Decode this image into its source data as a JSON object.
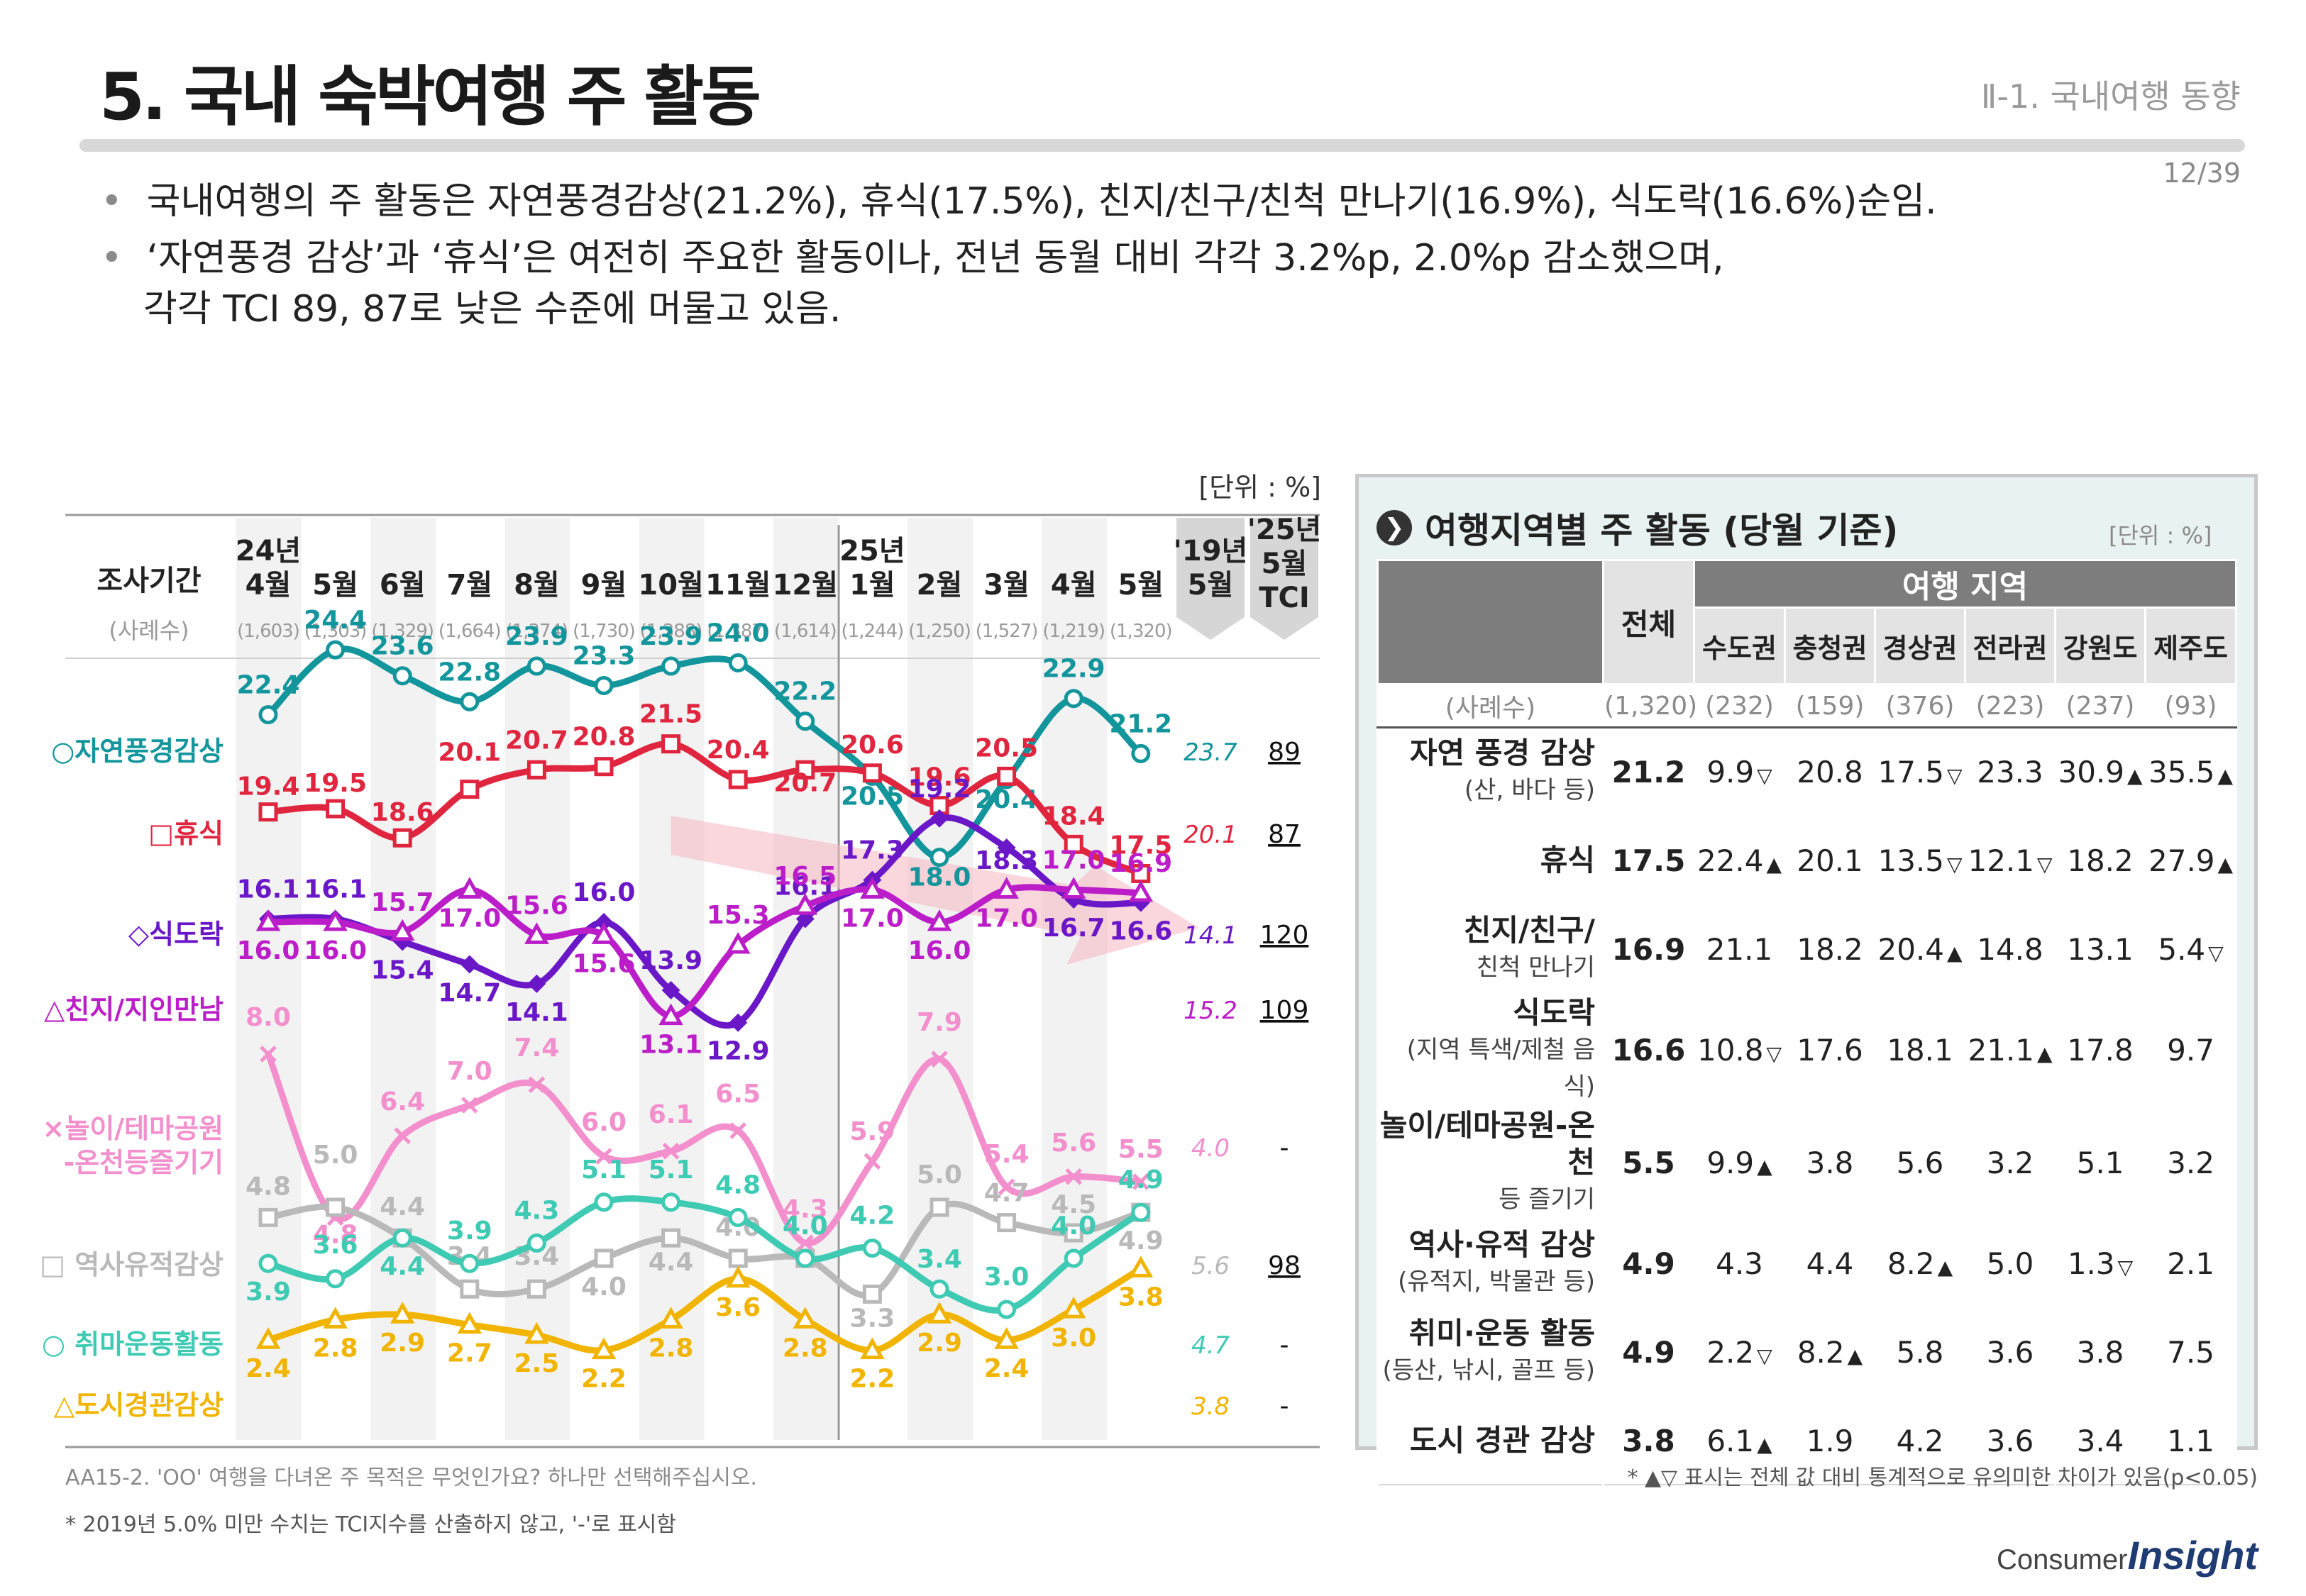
{
  "header": {
    "title": "5. 국내 숙박여행 주 활동",
    "section": "Ⅱ-1. 국내여행 동향",
    "page": "12/39"
  },
  "bullets": [
    "국내여행의 주 활동은 자연풍경감상(21.2%), 휴식(17.5%), 친지/친구/친척 만나기(16.9%), 식도락(16.6%)순임.",
    "‘자연풍경 감상’과 ‘휴식’은 여전히 주요한 활동이나, 전년 동월 대비 각각 3.2%p, 2.0%p 감소했으며,",
    "각각 TCI 89, 87로 낮은 수준에 머물고 있음."
  ],
  "chart_data": {
    "type": "line",
    "unit_label": "[단위 : %]",
    "period_header": "조사기간",
    "sample_header": "(사례수)",
    "categories": [
      "24년 4월",
      "5월",
      "6월",
      "7월",
      "8월",
      "9월",
      "10월",
      "11월",
      "12월",
      "25년 1월",
      "2월",
      "3월",
      "4월",
      "5월"
    ],
    "sample_sizes": [
      "(1,603)",
      "(1,303)",
      "(1,329)",
      "(1,664)",
      "(1,374)",
      "(1,730)",
      "(1,388)",
      "(1,387)",
      "(1,614)",
      "(1,244)",
      "(1,250)",
      "(1,527)",
      "(1,219)",
      "(1,320)"
    ],
    "extra_columns": [
      "'19년 5월",
      "'25년 5월 TCI"
    ],
    "series": [
      {
        "name": "○자연풍경감상",
        "color": "#13959c",
        "values": [
          22.4,
          24.4,
          23.6,
          22.8,
          23.9,
          23.3,
          23.9,
          24.0,
          22.2,
          20.5,
          18.0,
          20.4,
          22.9,
          21.2
        ],
        "y19": "23.7",
        "tci": "89"
      },
      {
        "name": "□휴식",
        "color": "#e0263f",
        "values": [
          19.4,
          19.5,
          18.6,
          20.1,
          20.7,
          20.8,
          21.5,
          20.4,
          20.7,
          20.6,
          19.6,
          20.5,
          18.4,
          17.5
        ],
        "y19": "20.1",
        "tci": "87"
      },
      {
        "name": "◇식도락",
        "color": "#6a17c8",
        "values": [
          16.1,
          16.1,
          15.4,
          14.7,
          14.1,
          16.0,
          13.9,
          12.9,
          16.1,
          17.3,
          19.2,
          18.3,
          16.7,
          16.6
        ],
        "y19": "14.1",
        "tci": "120"
      },
      {
        "name": "△친지/지인만남",
        "color": "#bb1ec8",
        "values": [
          16.0,
          16.0,
          15.7,
          17.0,
          15.6,
          15.6,
          13.1,
          15.3,
          16.5,
          17.0,
          16.0,
          17.0,
          17.0,
          16.9
        ],
        "y19": "15.2",
        "tci": "109"
      },
      {
        "name": "×놀이/테마공원 -온천등즐기기",
        "color": "#f38fcc",
        "values": [
          8.0,
          4.8,
          6.4,
          7.0,
          7.4,
          6.0,
          6.1,
          6.5,
          4.3,
          5.9,
          7.9,
          5.4,
          5.6,
          5.5
        ],
        "y19": "4.0",
        "tci": "-"
      },
      {
        "name": "□ 역사유적감상",
        "color": "#b9b9b9",
        "values": [
          4.8,
          5.0,
          4.4,
          3.4,
          3.4,
          4.0,
          4.4,
          4.0,
          4.0,
          3.3,
          5.0,
          4.7,
          4.5,
          4.9
        ],
        "y19": "5.6",
        "tci": "98"
      },
      {
        "name": "○ 취마운동활동",
        "color": "#3ecab3",
        "values": [
          3.9,
          3.6,
          4.4,
          3.9,
          4.3,
          5.1,
          5.1,
          4.8,
          4.0,
          4.2,
          3.4,
          3.0,
          4.0,
          4.9
        ],
        "y19": "4.7",
        "tci": "-"
      },
      {
        "name": "△도시경관감상",
        "color": "#f1b400",
        "values": [
          2.4,
          2.8,
          2.9,
          2.7,
          2.5,
          2.2,
          2.8,
          3.6,
          2.8,
          2.2,
          2.9,
          2.4,
          3.0,
          3.8
        ],
        "y19": "3.8",
        "tci": "-"
      }
    ],
    "title": "",
    "xlabel": "",
    "ylabel": ""
  },
  "region_table": {
    "title": "여행지역별 주 활동 (당월 기준)",
    "unit": "[단위 : %]",
    "total_header": "전체",
    "region_header": "여행 지역",
    "regions": [
      "수도권",
      "충청권",
      "경상권",
      "전라권",
      "강원도",
      "제주도"
    ],
    "sample_label": "(사례수)",
    "samples": [
      "(1,320)",
      "(232)",
      "(159)",
      "(376)",
      "(223)",
      "(237)",
      "(93)"
    ],
    "rows": [
      {
        "label": "자연 풍경 감상",
        "sub": "(산, 바다 등)",
        "total": "21.2",
        "cells": [
          {
            "v": "9.9",
            "m": "▽"
          },
          {
            "v": "20.8",
            "m": ""
          },
          {
            "v": "17.5",
            "m": "▽"
          },
          {
            "v": "23.3",
            "m": ""
          },
          {
            "v": "30.9",
            "m": "▲"
          },
          {
            "v": "35.5",
            "m": "▲"
          }
        ]
      },
      {
        "label": "휴식",
        "sub": "",
        "total": "17.5",
        "cells": [
          {
            "v": "22.4",
            "m": "▲"
          },
          {
            "v": "20.1",
            "m": ""
          },
          {
            "v": "13.5",
            "m": "▽"
          },
          {
            "v": "12.1",
            "m": "▽"
          },
          {
            "v": "18.2",
            "m": ""
          },
          {
            "v": "27.9",
            "m": "▲"
          }
        ]
      },
      {
        "label": "친지/친구/",
        "sub": "친척 만나기",
        "total": "16.9",
        "cells": [
          {
            "v": "21.1",
            "m": ""
          },
          {
            "v": "18.2",
            "m": ""
          },
          {
            "v": "20.4",
            "m": "▲"
          },
          {
            "v": "14.8",
            "m": ""
          },
          {
            "v": "13.1",
            "m": ""
          },
          {
            "v": "5.4",
            "m": "▽"
          }
        ]
      },
      {
        "label": "식도락",
        "sub": "(지역 특색/제철 음식)",
        "total": "16.6",
        "cells": [
          {
            "v": "10.8",
            "m": "▽"
          },
          {
            "v": "17.6",
            "m": ""
          },
          {
            "v": "18.1",
            "m": ""
          },
          {
            "v": "21.1",
            "m": "▲"
          },
          {
            "v": "17.8",
            "m": ""
          },
          {
            "v": "9.7",
            "m": ""
          }
        ]
      },
      {
        "label": "놀이/테마공원-온천",
        "sub": "등 즐기기",
        "total": "5.5",
        "cells": [
          {
            "v": "9.9",
            "m": "▲"
          },
          {
            "v": "3.8",
            "m": ""
          },
          {
            "v": "5.6",
            "m": ""
          },
          {
            "v": "3.2",
            "m": ""
          },
          {
            "v": "5.1",
            "m": ""
          },
          {
            "v": "3.2",
            "m": ""
          }
        ]
      },
      {
        "label": "역사·유적 감상",
        "sub": "(유적지, 박물관 등)",
        "total": "4.9",
        "cells": [
          {
            "v": "4.3",
            "m": ""
          },
          {
            "v": "4.4",
            "m": ""
          },
          {
            "v": "8.2",
            "m": "▲"
          },
          {
            "v": "5.0",
            "m": ""
          },
          {
            "v": "1.3",
            "m": "▽"
          },
          {
            "v": "2.1",
            "m": ""
          }
        ]
      },
      {
        "label": "취미·운동 활동",
        "sub": "(등산, 낚시, 골프 등)",
        "total": "4.9",
        "cells": [
          {
            "v": "2.2",
            "m": "▽"
          },
          {
            "v": "8.2",
            "m": "▲"
          },
          {
            "v": "5.8",
            "m": ""
          },
          {
            "v": "3.6",
            "m": ""
          },
          {
            "v": "3.8",
            "m": ""
          },
          {
            "v": "7.5",
            "m": ""
          }
        ]
      },
      {
        "label": "도시 경관 감상",
        "sub": "",
        "total": "3.8",
        "cells": [
          {
            "v": "6.1",
            "m": "▲"
          },
          {
            "v": "1.9",
            "m": ""
          },
          {
            "v": "4.2",
            "m": ""
          },
          {
            "v": "3.6",
            "m": ""
          },
          {
            "v": "3.4",
            "m": ""
          },
          {
            "v": "1.1",
            "m": ""
          }
        ]
      }
    ]
  },
  "footnotes": {
    "question": "AA15-2. 'OO' 여행을 다녀온 주 목적은 무엇인가요? 하나만 선택해주십시오.",
    "tci_note": "* 2019년 5.0% 미만 수치는 TCI지수를 산출하지 않고, '-'로 표시함",
    "significance": "* ▲▽ 표시는 전체 값 대비 통계적으로 유의미한 차이가 있음(p<0.05)"
  },
  "logo": {
    "part1": "Consumer",
    "part2": "Insight"
  }
}
